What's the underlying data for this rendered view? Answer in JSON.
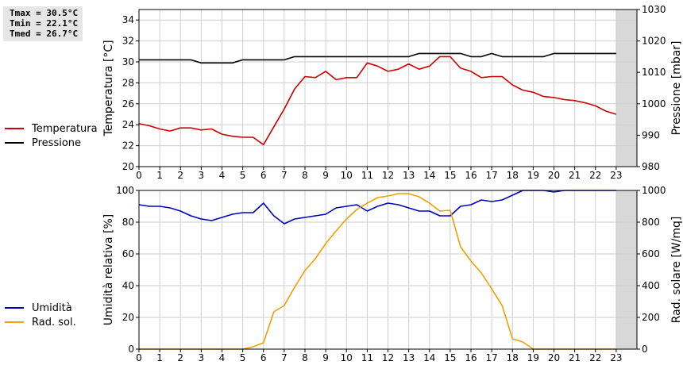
{
  "stats": {
    "tmax": "Tmax = 30.5°C",
    "tmin": "Tmin = 22.1°C",
    "tmed": "Tmed = 26.7°C"
  },
  "legend_top": [
    {
      "label": "Temperatura",
      "color": "#cc0000"
    },
    {
      "label": "Pressione",
      "color": "#000000"
    }
  ],
  "legend_bottom": [
    {
      "label": "Umidità",
      "color": "#0000bb"
    },
    {
      "label": "Rad. sol.",
      "color": "#f0a000"
    }
  ],
  "chart_data": [
    {
      "type": "line",
      "ylabel": "Temperatura [°C]",
      "y2label": "Pressione [mbar]",
      "xlim": [
        0,
        24
      ],
      "ylim": [
        20,
        35
      ],
      "y2lim": [
        980,
        1030
      ],
      "xticks": [
        "0",
        "1",
        "2",
        "3",
        "4",
        "5",
        "6",
        "7",
        "8",
        "9",
        "10",
        "11",
        "12",
        "13",
        "14",
        "15",
        "16",
        "17",
        "18",
        "19",
        "20",
        "21",
        "22",
        "23"
      ],
      "yticks": [
        "20",
        "22",
        "24",
        "26",
        "28",
        "30",
        "32",
        "34"
      ],
      "y2ticks": [
        "980",
        "990",
        "1000",
        "1010",
        "1020",
        "1030"
      ],
      "grid": true,
      "shaded_x_from": 23,
      "series": [
        {
          "name": "Temperatura",
          "color": "#cc0000",
          "axis": "left",
          "x": [
            0,
            0.5,
            1,
            1.5,
            2,
            2.5,
            3,
            3.5,
            4,
            4.5,
            5,
            5.5,
            6,
            6.5,
            7,
            7.5,
            8,
            8.5,
            9,
            9.5,
            10,
            10.5,
            11,
            11.5,
            12,
            12.5,
            13,
            13.5,
            14,
            14.5,
            15,
            15.5,
            16,
            16.5,
            17,
            17.5,
            18,
            18.5,
            19,
            19.5,
            20,
            20.5,
            21,
            21.5,
            22,
            22.5,
            23
          ],
          "values": [
            24.1,
            23.9,
            23.6,
            23.4,
            23.7,
            23.7,
            23.5,
            23.6,
            23.1,
            22.9,
            22.8,
            22.8,
            22.1,
            23.8,
            25.5,
            27.4,
            28.6,
            28.5,
            29.1,
            28.3,
            28.5,
            28.5,
            29.9,
            29.6,
            29.1,
            29.3,
            29.8,
            29.3,
            29.6,
            30.5,
            30.5,
            29.4,
            29.1,
            28.5,
            28.6,
            28.6,
            27.8,
            27.3,
            27.1,
            26.7,
            26.6,
            26.4,
            26.3,
            26.1,
            25.8,
            25.3,
            25.0
          ]
        },
        {
          "name": "Pressione",
          "color": "#000000",
          "axis": "right",
          "x": [
            0,
            0.5,
            1,
            1.5,
            2,
            2.5,
            3,
            3.5,
            4,
            4.5,
            5,
            5.5,
            6,
            6.5,
            7,
            7.5,
            8,
            8.5,
            9,
            9.5,
            10,
            10.5,
            11,
            11.5,
            12,
            12.5,
            13,
            13.5,
            14,
            14.5,
            15,
            15.5,
            16,
            16.5,
            17,
            17.5,
            18,
            18.5,
            19,
            19.5,
            20,
            20.5,
            21,
            21.5,
            22,
            22.5,
            23
          ],
          "values": [
            1014,
            1014,
            1014,
            1014,
            1014,
            1014,
            1013,
            1013,
            1013,
            1013,
            1014,
            1014,
            1014,
            1014,
            1014,
            1015,
            1015,
            1015,
            1015,
            1015,
            1015,
            1015,
            1015,
            1015,
            1015,
            1015,
            1015,
            1016,
            1016,
            1016,
            1016,
            1016,
            1015,
            1015,
            1016,
            1015,
            1015,
            1015,
            1015,
            1015,
            1016,
            1016,
            1016,
            1016,
            1016,
            1016,
            1016
          ]
        }
      ]
    },
    {
      "type": "line",
      "ylabel": "Umidità relativa [%]",
      "y2label": "Rad. solare [W/mq]",
      "xlim": [
        0,
        24
      ],
      "ylim": [
        0,
        100
      ],
      "y2lim": [
        0,
        1000
      ],
      "xticks": [
        "0",
        "1",
        "2",
        "3",
        "4",
        "5",
        "6",
        "7",
        "8",
        "9",
        "10",
        "11",
        "12",
        "13",
        "14",
        "15",
        "16",
        "17",
        "18",
        "19",
        "20",
        "21",
        "22",
        "23"
      ],
      "yticks": [
        "0",
        "20",
        "40",
        "60",
        "80",
        "100"
      ],
      "y2ticks": [
        "0",
        "200",
        "400",
        "600",
        "800",
        "1000"
      ],
      "grid": true,
      "shaded_x_from": 23,
      "series": [
        {
          "name": "Umidità",
          "color": "#0000bb",
          "axis": "left",
          "x": [
            0,
            0.5,
            1,
            1.5,
            2,
            2.5,
            3,
            3.5,
            4,
            4.5,
            5,
            5.5,
            6,
            6.5,
            7,
            7.5,
            8,
            8.5,
            9,
            9.5,
            10,
            10.5,
            11,
            11.5,
            12,
            12.5,
            13,
            13.5,
            14,
            14.5,
            15,
            15.5,
            16,
            16.5,
            17,
            17.5,
            18,
            18.5,
            19,
            19.5,
            20,
            20.5,
            21,
            21.5,
            22,
            22.5,
            23
          ],
          "values": [
            91,
            90,
            90,
            89,
            87,
            84,
            82,
            81,
            83,
            85,
            86,
            86,
            92,
            84,
            79,
            82,
            83,
            84,
            85,
            89,
            90,
            91,
            87,
            90,
            92,
            91,
            89,
            87,
            87,
            84,
            84,
            90,
            91,
            94,
            93,
            94,
            97,
            100,
            100,
            100,
            99,
            100,
            100,
            100,
            100,
            100,
            100
          ]
        },
        {
          "name": "Rad. sol.",
          "color": "#f0a000",
          "axis": "right",
          "x": [
            0,
            0.5,
            1,
            1.5,
            2,
            2.5,
            3,
            3.5,
            4,
            4.5,
            5,
            5.5,
            6,
            6.5,
            7,
            7.5,
            8,
            8.5,
            9,
            9.5,
            10,
            10.5,
            11,
            11.5,
            12,
            12.5,
            13,
            13.5,
            14,
            14.5,
            15,
            15.5,
            16,
            16.5,
            17,
            17.5,
            18,
            18.5,
            19,
            19.5,
            20,
            20.5,
            21,
            21.5,
            22,
            22.5,
            23
          ],
          "values": [
            0,
            0,
            0,
            0,
            0,
            0,
            0,
            0,
            0,
            0,
            0,
            15,
            40,
            235,
            275,
            390,
            495,
            570,
            665,
            745,
            820,
            880,
            920,
            955,
            965,
            980,
            980,
            960,
            920,
            870,
            875,
            645,
            555,
            480,
            380,
            275,
            65,
            45,
            0,
            0,
            0,
            0,
            0,
            0,
            0,
            0,
            0
          ]
        }
      ]
    }
  ]
}
